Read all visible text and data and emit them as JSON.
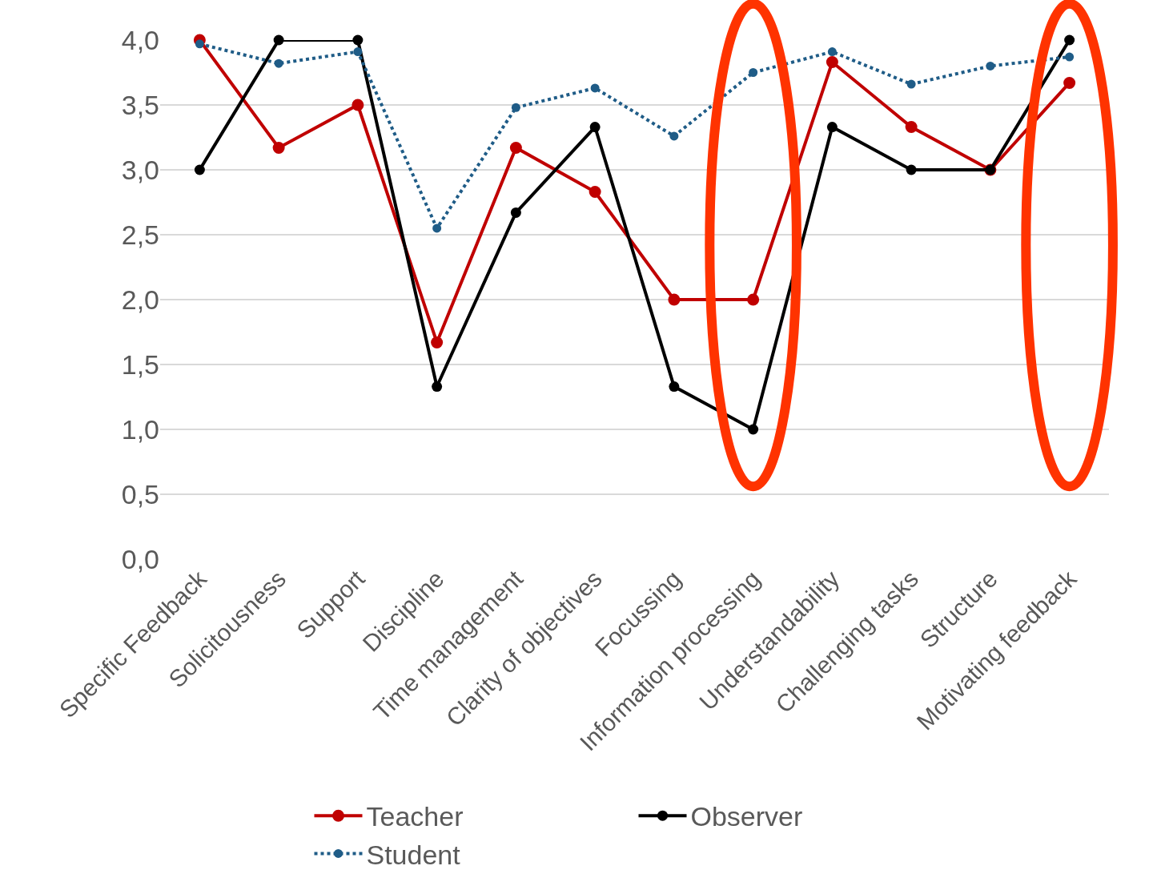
{
  "chart_data": {
    "type": "line",
    "categories": [
      "Specific Feedback",
      "Solicitousness",
      "Support",
      "Discipline",
      "Time management",
      "Clarity of objectives",
      "Focussing",
      "Information processing",
      "Understandability",
      "Challenging tasks",
      "Structure",
      "Motivating feedback"
    ],
    "series": [
      {
        "name": "Teacher",
        "color": "#c00000",
        "line_style": "solid",
        "values": [
          4.0,
          3.17,
          3.5,
          1.67,
          3.17,
          2.83,
          2.0,
          2.0,
          3.83,
          3.33,
          3.0,
          3.67
        ]
      },
      {
        "name": "Observer",
        "color": "#000000",
        "line_style": "solid",
        "values": [
          3.0,
          4.0,
          4.0,
          1.33,
          2.67,
          3.33,
          1.33,
          1.0,
          3.33,
          3.0,
          3.0,
          4.0
        ]
      },
      {
        "name": "Student",
        "color": "#1f5c87",
        "line_style": "dotted",
        "values": [
          3.97,
          3.82,
          3.91,
          2.55,
          3.48,
          3.63,
          3.26,
          3.75,
          3.91,
          3.66,
          3.8,
          3.87
        ]
      }
    ],
    "ylim": [
      0,
      4
    ],
    "yticks": [
      {
        "value": 0,
        "label": "0,0"
      },
      {
        "value": 0.5,
        "label": "0,5"
      },
      {
        "value": 1,
        "label": "1,0"
      },
      {
        "value": 1.5,
        "label": "1,5"
      },
      {
        "value": 2,
        "label": "2,0"
      },
      {
        "value": 2.5,
        "label": "2,5"
      },
      {
        "value": 3,
        "label": "3,0"
      },
      {
        "value": 3.5,
        "label": "3,5"
      },
      {
        "value": 4,
        "label": "4,0"
      }
    ],
    "grid": "y",
    "legend": "bottom",
    "marker": "circle"
  }
}
